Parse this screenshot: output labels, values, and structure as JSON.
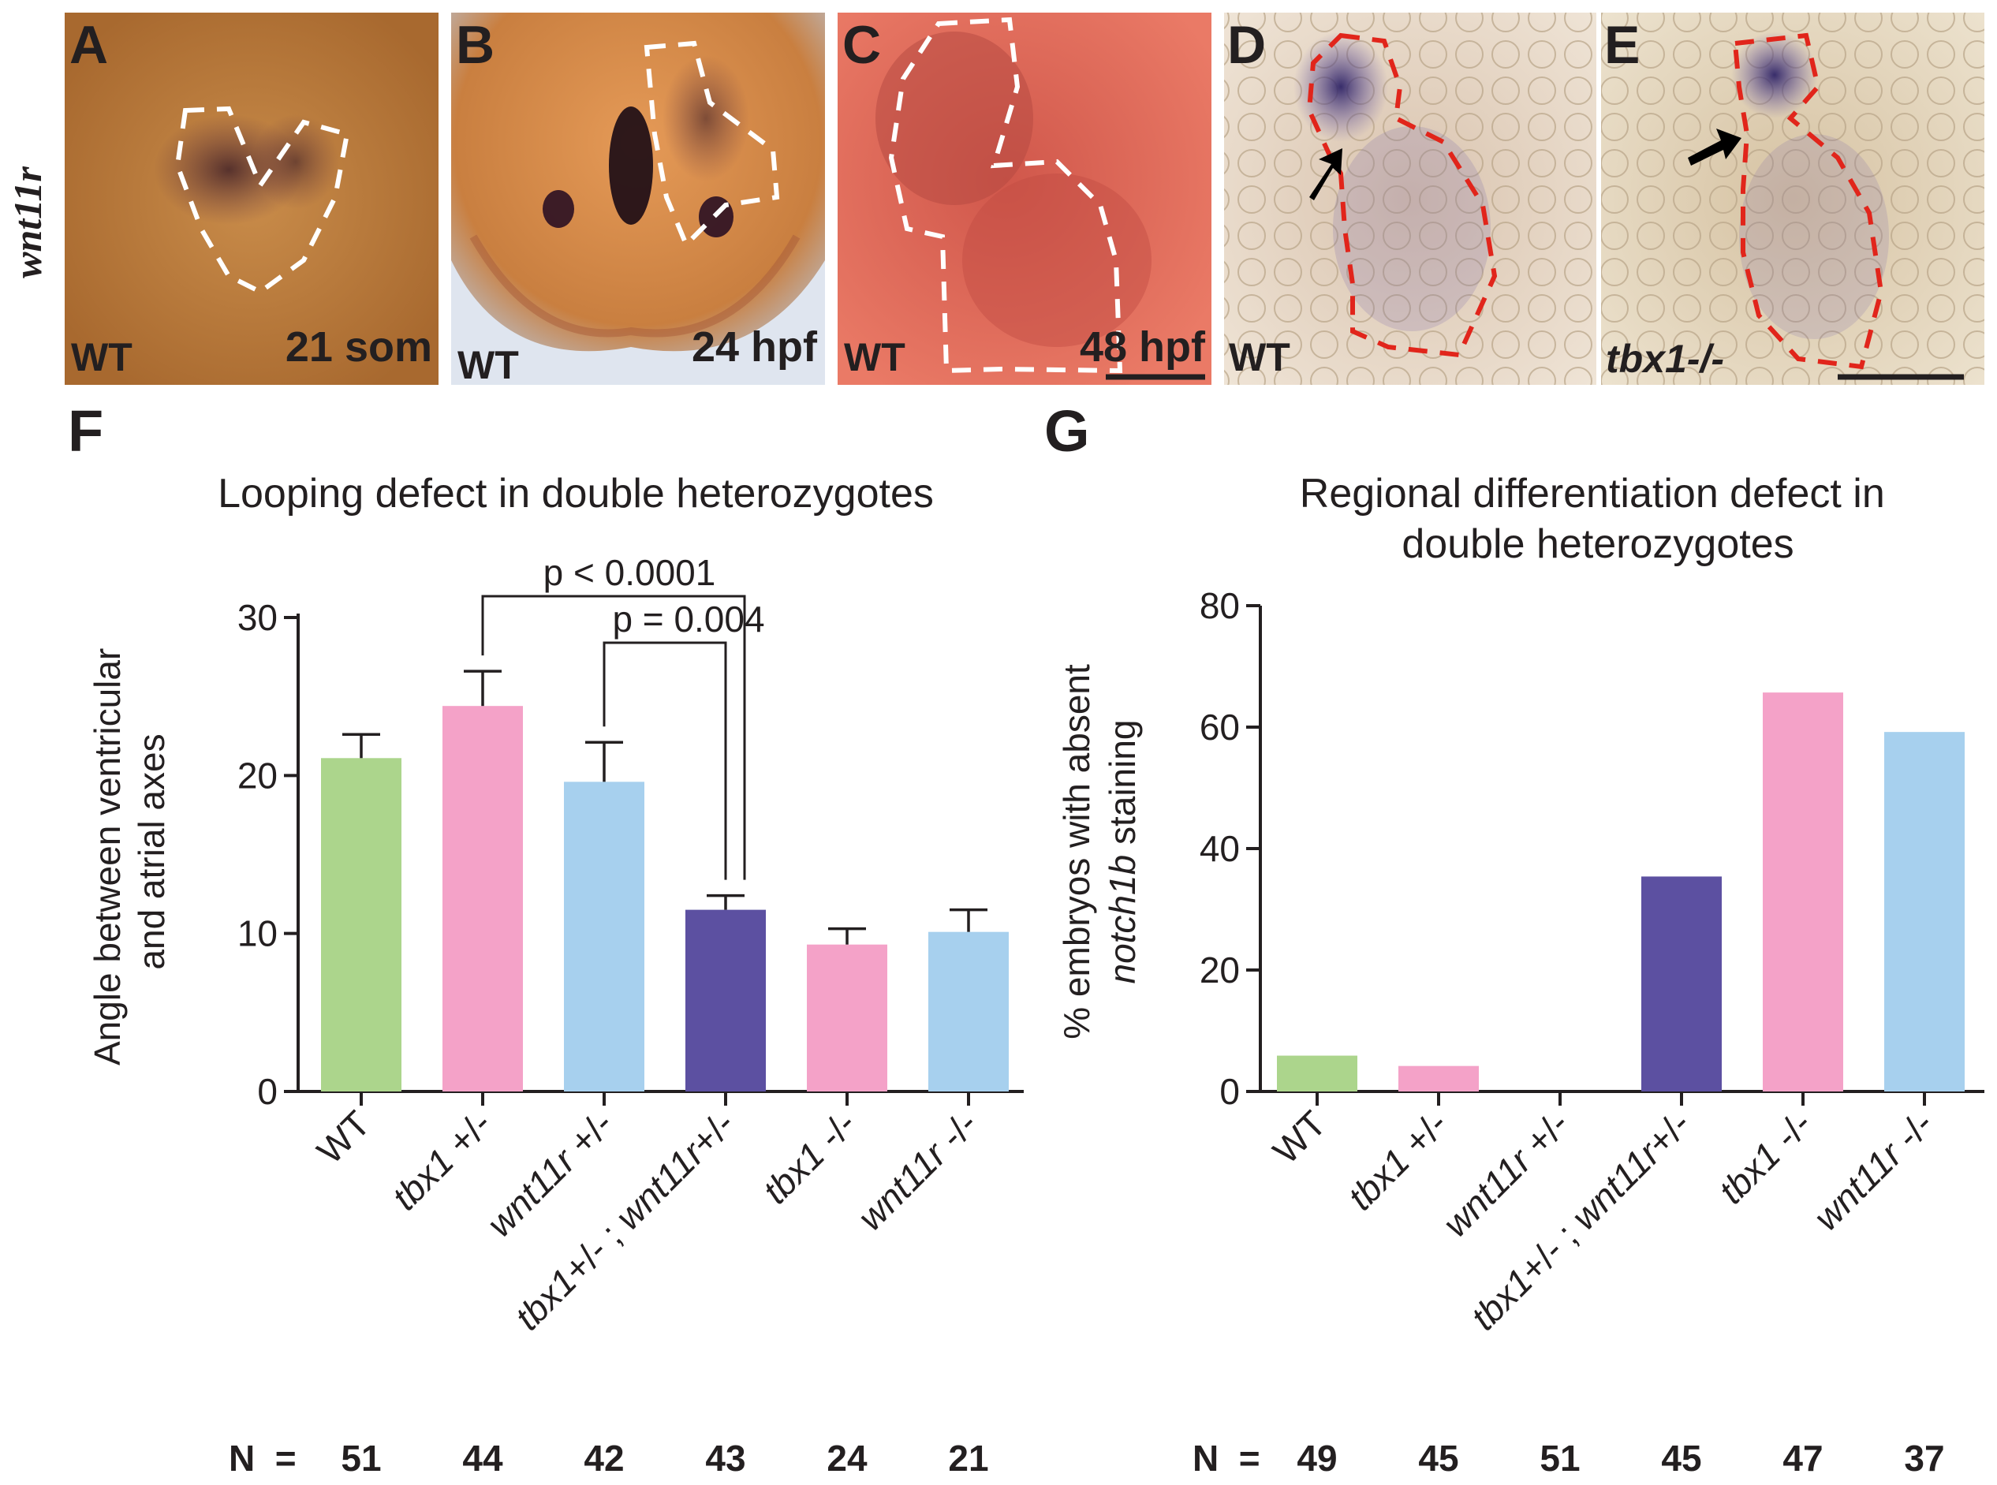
{
  "gene_label": "wnt11r",
  "panels": [
    {
      "letter": "A",
      "genotype": "WT",
      "stage": "21 som",
      "colors": {
        "bg": "#b97a3c",
        "stain": "#5a2a3e"
      }
    },
    {
      "letter": "B",
      "genotype": "WT",
      "stage": "24 hpf",
      "colors": {
        "bg": "#d08a4a",
        "stain": "#1f0c1a"
      }
    },
    {
      "letter": "C",
      "genotype": "WT",
      "stage": "48 hpf",
      "colors": {
        "bg": "#e0655a",
        "stain": "#a8423e"
      }
    },
    {
      "letter": "D",
      "genotype": "WT",
      "stage": "",
      "colors": {
        "bg": "#e2d3c4",
        "stain": "#3a2f6b"
      }
    },
    {
      "letter": "E",
      "genotype": "tbx1-/-",
      "stage": "",
      "colors": {
        "bg": "#ddcfb8",
        "stain": "#4b3a86"
      }
    }
  ],
  "colors": {
    "green": "#acd58c",
    "pink": "#f4a2c8",
    "lightblue": "#a7d0ee",
    "purple": "#5c50a1",
    "text": "#231f20",
    "outline_white": "#ffffff",
    "outline_red": "#e1251b",
    "arrow": "#000000"
  },
  "chart_data": [
    {
      "panel": "F",
      "type": "bar",
      "title": "Looping defect in double heterozygotes",
      "xlabel": "",
      "ylabel": "Angle between ventricular and atrial axes",
      "ylabel_lines": [
        "Angle between ventricular",
        "and atrial axes"
      ],
      "ylim": [
        0,
        30
      ],
      "yticks": [
        0,
        10,
        20,
        30
      ],
      "categories": [
        "WT",
        "tbx1 +/-",
        "wnt11r +/-",
        "tbx1+/- ; wnt11r+/-",
        "tbx1 -/-",
        "wnt11r -/-"
      ],
      "values": [
        21.1,
        24.4,
        19.6,
        11.5,
        9.3,
        10.1
      ],
      "errors": [
        1.5,
        2.2,
        2.5,
        0.9,
        1.0,
        1.4
      ],
      "bar_colors": [
        "green",
        "pink",
        "lightblue",
        "purple",
        "pink",
        "lightblue"
      ],
      "n_label": "N  =",
      "n": [
        "51",
        "44",
        "42",
        "43",
        "24",
        "21"
      ],
      "comparisons": [
        {
          "from": 1,
          "to": 3,
          "label": "p < 0.0001"
        },
        {
          "from": 2,
          "to": 3,
          "label": "p = 0.004"
        }
      ]
    },
    {
      "panel": "G",
      "type": "bar",
      "title": "Regional differentiation defect in double heterozygotes",
      "title_lines": [
        "Regional differentiation defect in",
        "double heterozygotes"
      ],
      "xlabel": "",
      "ylabel": "% embryos with absent notch1b staining",
      "ylabel_lines": [
        "% embryos with absent",
        "notch1b staining"
      ],
      "ylim": [
        0,
        80
      ],
      "yticks": [
        0,
        20,
        40,
        60,
        80
      ],
      "categories": [
        "WT",
        "tbx1 +/-",
        "wnt11r +/-",
        "tbx1+/- ; wnt11r+/-",
        "tbx1 -/-",
        "wnt11r -/-"
      ],
      "values": [
        5.9,
        4.2,
        0,
        35.4,
        65.7,
        59.2
      ],
      "bar_colors": [
        "green",
        "pink",
        "lightblue",
        "purple",
        "pink",
        "lightblue"
      ],
      "n_label": "N  =",
      "n": [
        "49",
        "45",
        "51",
        "45",
        "47",
        "37"
      ]
    }
  ]
}
